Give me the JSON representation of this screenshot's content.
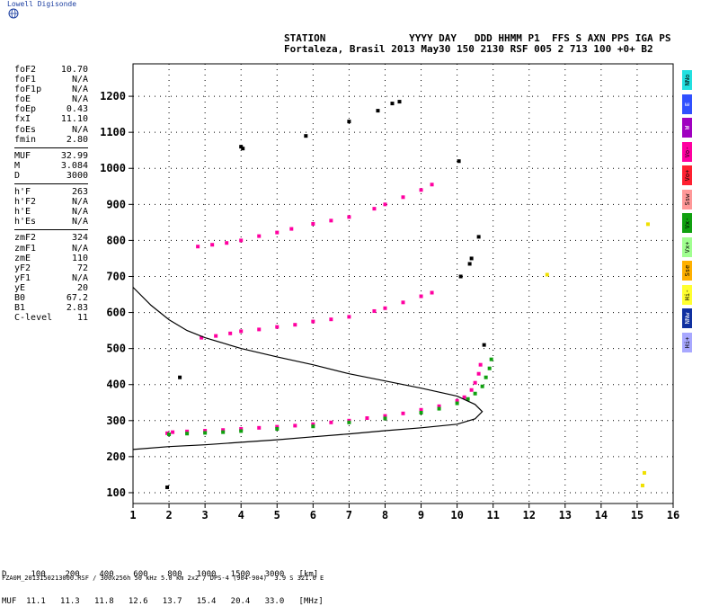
{
  "header": {
    "brand": "Lowell Digisonde",
    "line1": "STATION              YYYY DAY   DDD HHMM P1  FFS S AXN PPS IGA PS",
    "line2": "Fortaleza, Brasil 2013 May30 150 2130 RSF 005 2 713 100 +0+ B2"
  },
  "params": [
    {
      "label": "foF2",
      "value": "10.70"
    },
    {
      "label": "foF1",
      "value": "N/A"
    },
    {
      "label": "foF1p",
      "value": "N/A"
    },
    {
      "label": "foE",
      "value": "N/A"
    },
    {
      "label": "foEp",
      "value": "0.43"
    },
    {
      "label": "fxI",
      "value": "11.10"
    },
    {
      "label": "foEs",
      "value": "N/A"
    },
    {
      "label": "fmin",
      "value": "2.80"
    },
    {
      "sep": true
    },
    {
      "label": "MUF",
      "value": "32.99"
    },
    {
      "label": "M",
      "value": "3.084"
    },
    {
      "label": "D",
      "value": "3000"
    },
    {
      "sep": true
    },
    {
      "label": "h'F",
      "value": "263"
    },
    {
      "label": "h'F2",
      "value": "N/A"
    },
    {
      "label": "h'E",
      "value": "N/A"
    },
    {
      "label": "h'Es",
      "value": "N/A"
    },
    {
      "sep": true
    },
    {
      "label": "zmF2",
      "value": "324"
    },
    {
      "label": "zmF1",
      "value": "N/A"
    },
    {
      "label": "zmE",
      "value": "110"
    },
    {
      "label": "yF2",
      "value": "72"
    },
    {
      "label": "yF1",
      "value": "N/A"
    },
    {
      "label": "yE",
      "value": "20"
    },
    {
      "label": "B0",
      "value": "67.2"
    },
    {
      "label": "B1",
      "value": "2.83"
    },
    {
      "label": "C-level",
      "value": "11"
    }
  ],
  "polarizations": [
    {
      "label": "NNo",
      "color": "#22e0e0"
    },
    {
      "label": "E",
      "color": "#3050ff"
    },
    {
      "label": "W",
      "color": "#a000c0"
    },
    {
      "label": "Vo-",
      "color": "#ff00a0"
    },
    {
      "label": "Vo+",
      "color": "#ff2030"
    },
    {
      "label": "Ssw",
      "color": "#ff9898"
    },
    {
      "label": "Vx-",
      "color": "#10a010"
    },
    {
      "label": "Vx+",
      "color": "#a0ff90"
    },
    {
      "label": "Sse",
      "color": "#ffb000"
    },
    {
      "label": "Hi-",
      "color": "#ffff30"
    },
    {
      "label": "NNw",
      "color": "#1030a0"
    },
    {
      "label": "Hi+",
      "color": "#a8a8ff"
    }
  ],
  "bottom": {
    "d_row": "D     100    200    400    600    800   1000   1500   3000   [km]",
    "muf_row": "MUF  11.1   11.3   11.8   12.6   13.7   15.4   20.4   33.0   [MHz]",
    "file_line": "FZA0M_2013150213000.RSF / 300x256h 50 kHz 5.0 km 2x2 / DPS-4 (904-904)  3.9 S 321.6 E"
  },
  "chart_data": {
    "type": "scatter",
    "title": "",
    "xlabel": "",
    "ylabel": "",
    "xlim": [
      1,
      16
    ],
    "ylim": [
      70,
      1290
    ],
    "x_ticks": [
      1,
      2,
      3,
      4,
      5,
      6,
      7,
      8,
      9,
      10,
      11,
      12,
      13,
      14,
      15,
      16
    ],
    "y_ticks": [
      100,
      200,
      300,
      400,
      500,
      600,
      700,
      800,
      900,
      1000,
      1100,
      1200
    ],
    "grid": true,
    "series": [
      {
        "color": "#ff00a0",
        "points": [
          [
            1.95,
            265
          ],
          [
            2.1,
            268
          ],
          [
            2.5,
            270
          ],
          [
            3.0,
            272
          ],
          [
            3.5,
            274
          ],
          [
            4.0,
            277
          ],
          [
            4.5,
            280
          ],
          [
            5.0,
            283
          ],
          [
            5.5,
            286
          ],
          [
            6.0,
            290
          ],
          [
            6.5,
            295
          ],
          [
            7.0,
            300
          ],
          [
            7.5,
            307
          ],
          [
            8.0,
            313
          ],
          [
            8.5,
            320
          ],
          [
            9.0,
            330
          ],
          [
            9.5,
            340
          ],
          [
            10.0,
            355
          ],
          [
            10.2,
            365
          ],
          [
            10.4,
            385
          ],
          [
            10.5,
            405
          ],
          [
            10.6,
            430
          ],
          [
            10.65,
            455
          ]
        ]
      },
      {
        "color": "#10a010",
        "points": [
          [
            2.0,
            262
          ],
          [
            2.5,
            264
          ],
          [
            3.0,
            266
          ],
          [
            3.5,
            268
          ],
          [
            4.0,
            271
          ],
          [
            5.0,
            277
          ],
          [
            6.0,
            284
          ],
          [
            7.0,
            295
          ],
          [
            8.0,
            306
          ],
          [
            9.0,
            322
          ],
          [
            9.5,
            333
          ],
          [
            10.0,
            348
          ],
          [
            10.3,
            360
          ],
          [
            10.5,
            375
          ],
          [
            10.7,
            395
          ],
          [
            10.8,
            420
          ],
          [
            10.9,
            445
          ],
          [
            10.95,
            470
          ]
        ]
      },
      {
        "color": "#ff00a0",
        "points": [
          [
            2.9,
            530
          ],
          [
            3.3,
            535
          ],
          [
            3.7,
            542
          ],
          [
            4.0,
            548
          ],
          [
            4.5,
            553
          ],
          [
            5.0,
            560
          ],
          [
            5.5,
            566
          ],
          [
            6.0,
            575
          ],
          [
            6.5,
            581
          ],
          [
            7.0,
            588
          ],
          [
            7.7,
            604
          ],
          [
            8.0,
            612
          ],
          [
            8.5,
            628
          ],
          [
            9.0,
            645
          ],
          [
            9.3,
            655
          ]
        ]
      },
      {
        "color": "#ff00a0",
        "points": [
          [
            2.8,
            783
          ],
          [
            3.2,
            788
          ],
          [
            3.6,
            793
          ],
          [
            4.0,
            800
          ],
          [
            4.5,
            812
          ],
          [
            5.0,
            822
          ],
          [
            5.4,
            832
          ],
          [
            6.0,
            846
          ],
          [
            6.5,
            855
          ],
          [
            7.0,
            865
          ],
          [
            7.7,
            888
          ],
          [
            8.0,
            900
          ],
          [
            8.5,
            920
          ],
          [
            9.0,
            940
          ],
          [
            9.3,
            955
          ]
        ]
      },
      {
        "color": "#000000",
        "points": [
          [
            2.3,
            420
          ],
          [
            1.95,
            115
          ],
          [
            4.05,
            1055
          ],
          [
            4.0,
            1060
          ],
          [
            5.8,
            1090
          ],
          [
            7.0,
            1130
          ],
          [
            7.8,
            1160
          ],
          [
            8.2,
            1180
          ],
          [
            8.4,
            1185
          ],
          [
            10.05,
            1020
          ],
          [
            10.6,
            810
          ],
          [
            10.4,
            750
          ],
          [
            10.35,
            735
          ],
          [
            10.1,
            700
          ],
          [
            10.75,
            510
          ]
        ]
      },
      {
        "color": "#f0e000",
        "points": [
          [
            12.5,
            705
          ],
          [
            15.15,
            120
          ],
          [
            15.2,
            155
          ],
          [
            15.3,
            845
          ]
        ]
      }
    ],
    "profile": {
      "color": "#000000",
      "points": [
        [
          1.0,
          670
        ],
        [
          1.5,
          620
        ],
        [
          2.0,
          580
        ],
        [
          2.5,
          550
        ],
        [
          3.0,
          530
        ],
        [
          3.5,
          515
        ],
        [
          4.0,
          500
        ],
        [
          5.0,
          477
        ],
        [
          6.0,
          455
        ],
        [
          7.0,
          430
        ],
        [
          8.0,
          410
        ],
        [
          9.0,
          390
        ],
        [
          10.0,
          368
        ],
        [
          10.5,
          345
        ],
        [
          10.7,
          325
        ],
        [
          10.5,
          305
        ],
        [
          10.0,
          290
        ],
        [
          9.0,
          280
        ],
        [
          8.0,
          272
        ],
        [
          7.0,
          263
        ],
        [
          6.0,
          255
        ],
        [
          5.0,
          247
        ],
        [
          4.0,
          240
        ],
        [
          3.0,
          233
        ],
        [
          2.0,
          228
        ],
        [
          1.0,
          220
        ]
      ]
    }
  }
}
